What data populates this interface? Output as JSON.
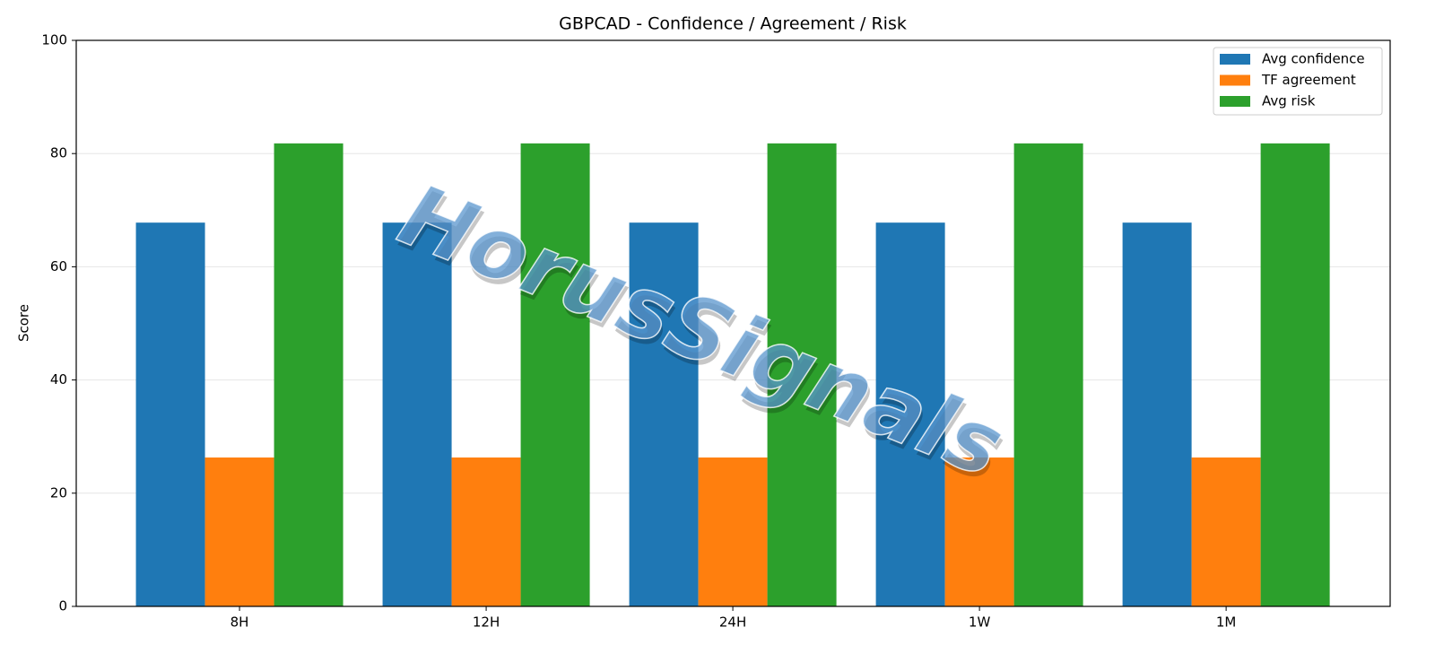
{
  "chart_data": {
    "type": "bar",
    "title": "GBPCAD - Confidence / Agreement / Risk",
    "y_label": "Score",
    "watermark": "HorusSignals",
    "categories": [
      "8H",
      "12H",
      "24H",
      "1W",
      "1M"
    ],
    "series": [
      {
        "name": "Avg confidence",
        "color": "#1f77b4",
        "values": [
          67.8,
          67.8,
          67.8,
          67.8,
          67.8
        ]
      },
      {
        "name": "TF agreement",
        "color": "#ff7f0e",
        "values": [
          26.3,
          26.3,
          26.3,
          26.3,
          26.3
        ]
      },
      {
        "name": "Avg risk",
        "color": "#2ca02c",
        "values": [
          81.8,
          81.8,
          81.8,
          81.8,
          81.8
        ]
      }
    ],
    "ylim": [
      0,
      100
    ],
    "yticks": [
      0,
      20,
      40,
      60,
      80,
      100
    ],
    "grid": true,
    "legend": "upper right"
  }
}
